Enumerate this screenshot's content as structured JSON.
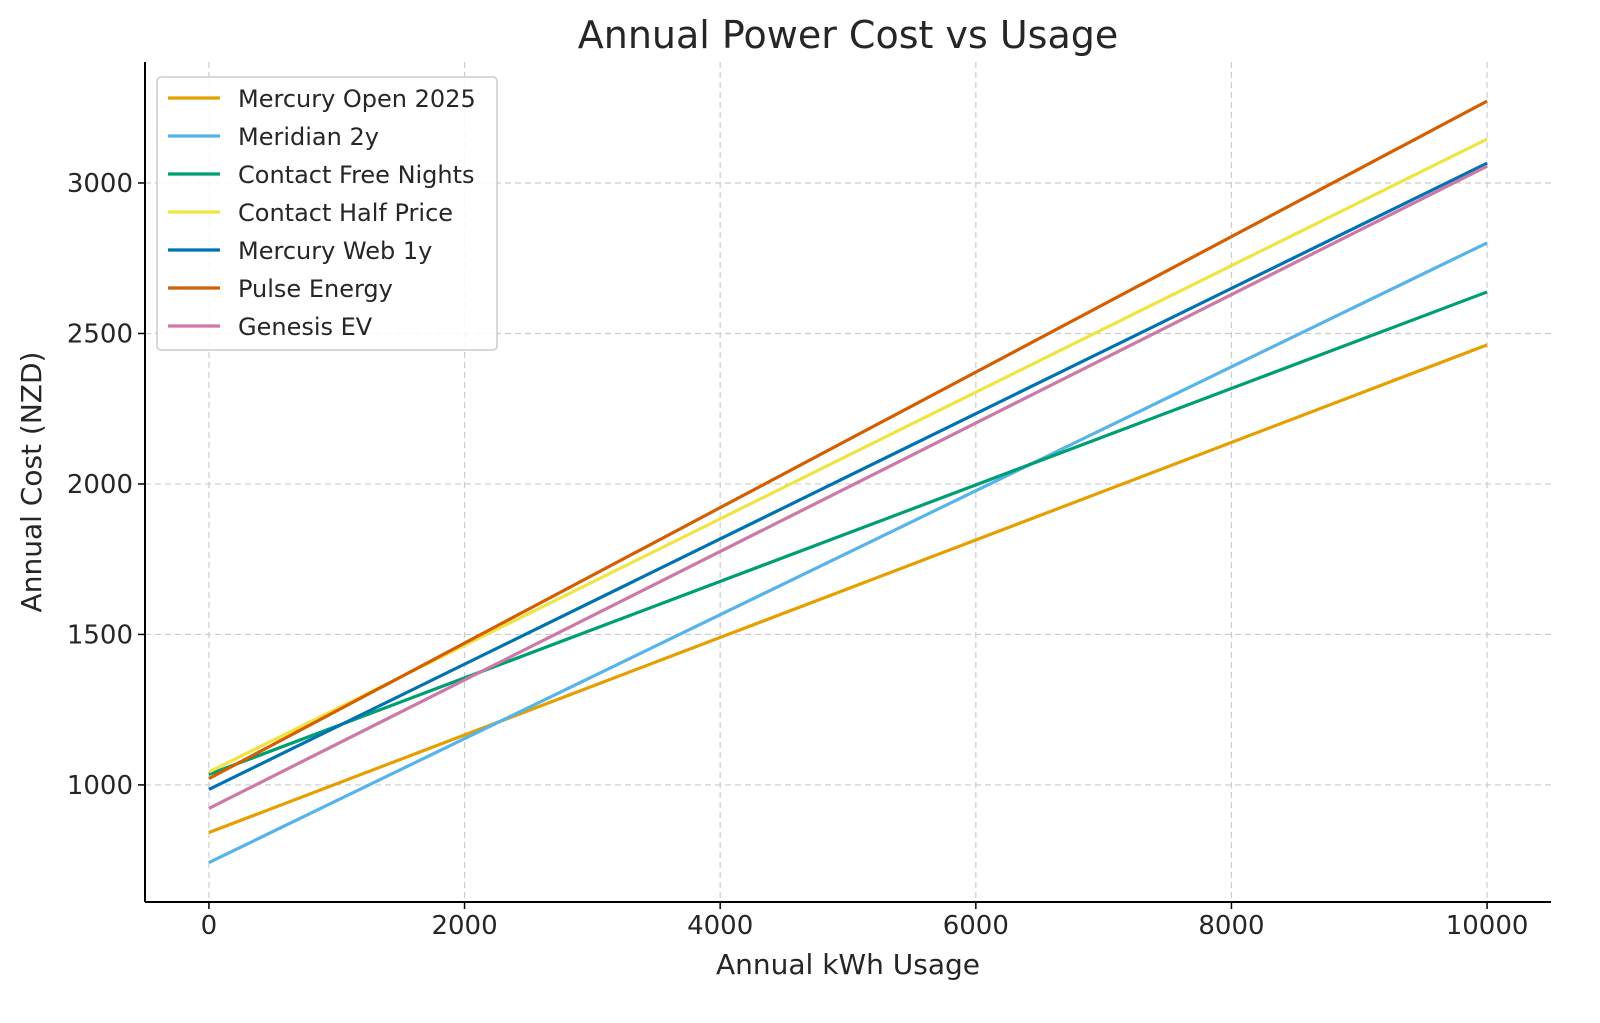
{
  "chart_data": {
    "type": "line",
    "title": "Annual Power Cost vs Usage",
    "xlabel": "Annual kWh Usage",
    "ylabel": "Annual Cost (NZD)",
    "xlim": [
      -500,
      10500
    ],
    "ylim": [
      611,
      3402
    ],
    "xticks": [
      0,
      2000,
      4000,
      6000,
      8000,
      10000
    ],
    "yticks": [
      1000,
      1500,
      2000,
      2500,
      3000
    ],
    "grid": true,
    "legend_position": "top-left",
    "x": [
      0,
      10000
    ],
    "series": [
      {
        "name": "Mercury Open 2025",
        "color": "#E69F00",
        "values": [
          842,
          2462
        ]
      },
      {
        "name": "Meridian 2y",
        "color": "#56B4E9",
        "values": [
          742,
          2801
        ]
      },
      {
        "name": "Contact Free Nights",
        "color": "#009E73",
        "values": [
          1035,
          2638
        ]
      },
      {
        "name": "Contact Half Price",
        "color": "#F0E442",
        "values": [
          1043,
          3146
        ]
      },
      {
        "name": "Mercury Web 1y",
        "color": "#0072B2",
        "values": [
          985,
          3066
        ]
      },
      {
        "name": "Pulse Energy",
        "color": "#D55E00",
        "values": [
          1021,
          3272
        ]
      },
      {
        "name": "Genesis EV",
        "color": "#CC79A7",
        "values": [
          922,
          3056
        ]
      }
    ]
  }
}
